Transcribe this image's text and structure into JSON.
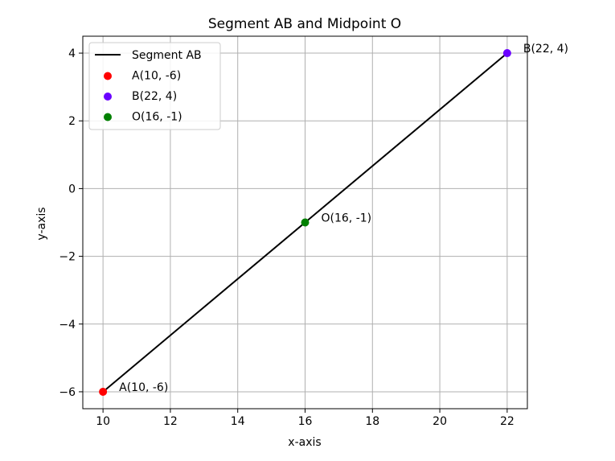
{
  "chart_data": {
    "type": "line",
    "title": "Segment AB and Midpoint O",
    "xlabel": "x-axis",
    "ylabel": "y-axis",
    "xlim": [
      9.4,
      22.6
    ],
    "ylim": [
      -6.5,
      4.5
    ],
    "x_ticks": [
      10,
      12,
      14,
      16,
      18,
      20,
      22
    ],
    "y_ticks": [
      -6,
      -4,
      -2,
      0,
      2,
      4
    ],
    "x_tick_labels": [
      "10",
      "12",
      "14",
      "16",
      "18",
      "20",
      "22"
    ],
    "y_tick_labels": [
      "−6",
      "−4",
      "−2",
      "0",
      "2",
      "4"
    ],
    "grid": true,
    "legend_position": "top-left",
    "series": [
      {
        "name": "Segment AB",
        "kind": "line",
        "color": "#000000",
        "x": [
          10,
          22
        ],
        "y": [
          -6,
          4
        ]
      },
      {
        "name": "A(10, -6)",
        "kind": "point",
        "color": "#ff0000",
        "x": [
          10
        ],
        "y": [
          -6
        ]
      },
      {
        "name": "B(22, 4)",
        "kind": "point",
        "color": "#6a00ff",
        "x": [
          22
        ],
        "y": [
          4
        ]
      },
      {
        "name": "O(16, -1)",
        "kind": "point",
        "color": "#008000",
        "x": [
          16
        ],
        "y": [
          -1
        ]
      }
    ],
    "annotations": [
      {
        "text": "A(10, -6)",
        "x": 10,
        "y": -6
      },
      {
        "text": "B(22, 4)",
        "x": 22,
        "y": 4
      },
      {
        "text": "O(16, -1)",
        "x": 16,
        "y": -1
      }
    ]
  }
}
